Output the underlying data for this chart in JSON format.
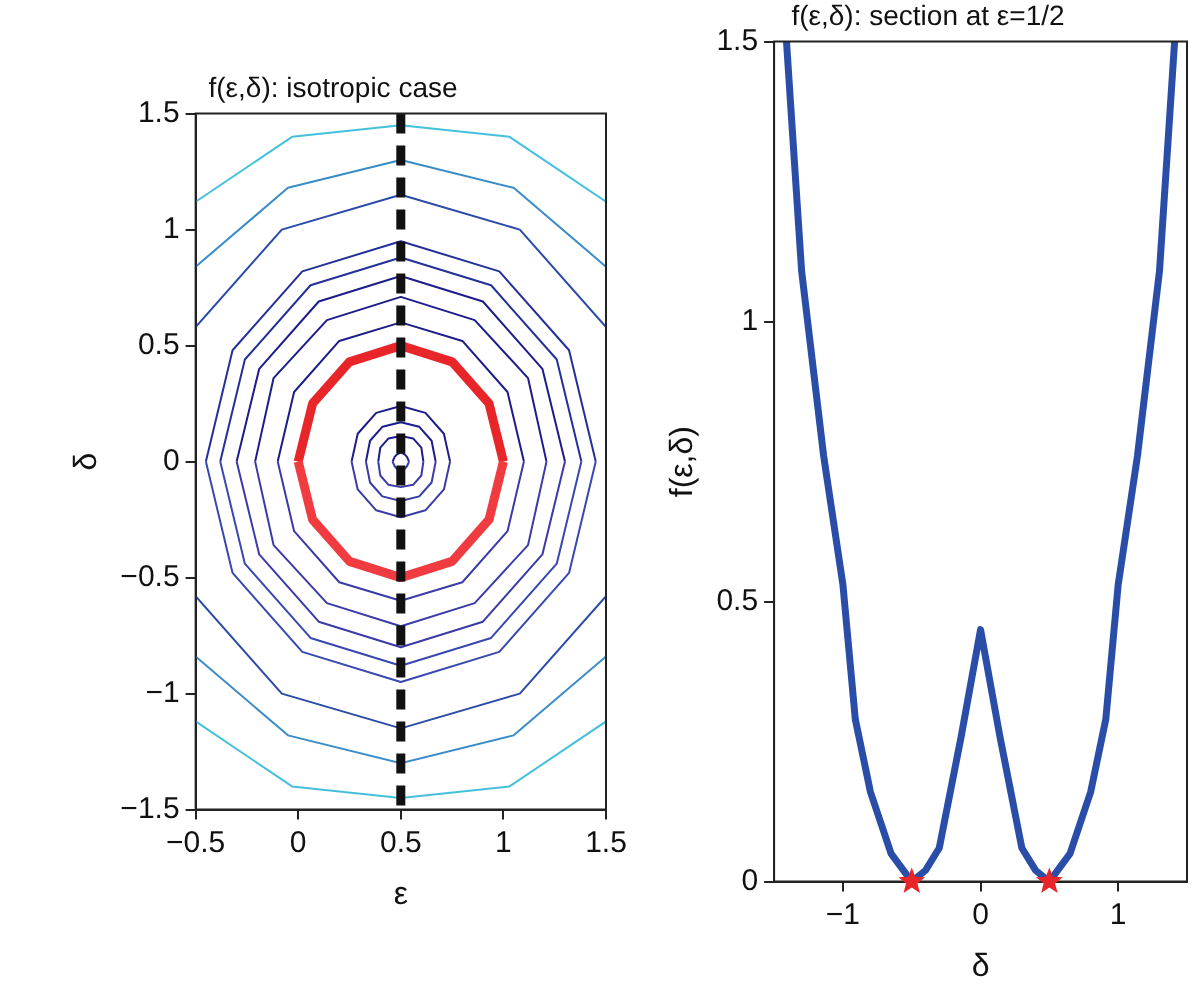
{
  "chart_data": [
    {
      "type": "line",
      "title": "f(ε,δ): isotropic case",
      "xlabel": "ε",
      "ylabel": "δ",
      "xlim": [
        -0.5,
        1.5
      ],
      "ylim": [
        -1.5,
        1.5
      ],
      "xticks": [
        -0.5,
        0,
        0.5,
        1,
        1.5
      ],
      "yticks": [
        -1.5,
        -1,
        -0.5,
        0,
        0.5,
        1,
        1.5
      ],
      "grid": false,
      "legend": false,
      "marker": "none",
      "ref_lines": [
        {
          "axis": "x",
          "value": 0.5,
          "color": "#111111",
          "line_style": "dashed"
        }
      ],
      "series": [
        {
          "color": "#1c1c8a",
          "x": [
            0.54,
            0.53,
            0.52,
            0.5,
            0.48,
            0.47,
            0.46
          ],
          "values": [
            0,
            0.02,
            0.03,
            0.04,
            0.03,
            0.02,
            0
          ]
        },
        {
          "color": "#3a3aa8",
          "x": [
            0.46,
            0.47,
            0.48,
            0.5,
            0.52,
            0.53,
            0.54
          ],
          "values": [
            0,
            -0.02,
            -0.03,
            -0.04,
            -0.03,
            -0.02,
            0
          ]
        },
        {
          "color": "#1c1c8a",
          "x": [
            0.61,
            0.6,
            0.56,
            0.5,
            0.44,
            0.4,
            0.39
          ],
          "values": [
            0,
            0.06,
            0.1,
            0.11,
            0.1,
            0.06,
            0
          ]
        },
        {
          "color": "#3a3aa8",
          "x": [
            0.39,
            0.4,
            0.44,
            0.5,
            0.56,
            0.6,
            0.61
          ],
          "values": [
            0,
            -0.06,
            -0.1,
            -0.11,
            -0.1,
            -0.06,
            0
          ]
        },
        {
          "color": "#1c1c8a",
          "x": [
            0.67,
            0.65,
            0.59,
            0.5,
            0.41,
            0.35,
            0.33
          ],
          "values": [
            0,
            0.09,
            0.15,
            0.17,
            0.15,
            0.09,
            0
          ]
        },
        {
          "color": "#3a3aa8",
          "x": [
            0.33,
            0.35,
            0.41,
            0.5,
            0.59,
            0.65,
            0.67
          ],
          "values": [
            0,
            -0.09,
            -0.15,
            -0.17,
            -0.15,
            -0.09,
            0
          ]
        },
        {
          "color": "#1c1c8a",
          "x": [
            0.74,
            0.71,
            0.62,
            0.5,
            0.38,
            0.29,
            0.26
          ],
          "values": [
            0,
            0.12,
            0.21,
            0.24,
            0.21,
            0.12,
            0
          ]
        },
        {
          "color": "#3a3aa8",
          "x": [
            0.26,
            0.29,
            0.38,
            0.5,
            0.62,
            0.71,
            0.74
          ],
          "values": [
            0,
            -0.12,
            -0.21,
            -0.24,
            -0.21,
            -0.12,
            0
          ]
        },
        {
          "color": "#1c1c8a",
          "x": [
            1.1,
            1.02,
            0.8,
            0.5,
            0.2,
            -0.02,
            -0.1
          ],
          "values": [
            0,
            0.3,
            0.52,
            0.6,
            0.52,
            0.3,
            0
          ]
        },
        {
          "color": "#3a3aa8",
          "x": [
            -0.1,
            -0.02,
            0.2,
            0.5,
            0.8,
            1.02,
            1.1
          ],
          "values": [
            0,
            -0.3,
            -0.52,
            -0.6,
            -0.52,
            -0.3,
            0
          ]
        },
        {
          "color": "#1c1c8a",
          "x": [
            1.21,
            1.12,
            0.86,
            0.5,
            0.14,
            -0.12,
            -0.21
          ],
          "values": [
            0,
            0.36,
            0.61,
            0.71,
            0.61,
            0.36,
            0
          ]
        },
        {
          "color": "#3a3aa8",
          "x": [
            -0.21,
            -0.12,
            0.14,
            0.5,
            0.86,
            1.12,
            1.21
          ],
          "values": [
            0,
            -0.36,
            -0.61,
            -0.71,
            -0.61,
            -0.36,
            0
          ]
        },
        {
          "color": "#1c1c8a",
          "x": [
            1.3,
            1.19,
            0.9,
            0.5,
            0.1,
            -0.19,
            -0.3
          ],
          "values": [
            0,
            0.4,
            0.69,
            0.8,
            0.69,
            0.4,
            0
          ]
        },
        {
          "color": "#3a3aa8",
          "x": [
            -0.3,
            -0.19,
            0.1,
            0.5,
            0.9,
            1.19,
            1.3
          ],
          "values": [
            0,
            -0.4,
            -0.69,
            -0.8,
            -0.69,
            -0.4,
            0
          ]
        },
        {
          "color": "#24309a",
          "x": [
            1.38,
            1.26,
            0.94,
            0.5,
            0.06,
            -0.26,
            -0.38
          ],
          "values": [
            0,
            0.44,
            0.76,
            0.88,
            0.76,
            0.44,
            0
          ]
        },
        {
          "color": "#3848b0",
          "x": [
            -0.38,
            -0.26,
            0.06,
            0.5,
            0.94,
            1.26,
            1.38
          ],
          "values": [
            0,
            -0.44,
            -0.76,
            -0.88,
            -0.76,
            -0.44,
            0
          ]
        },
        {
          "color": "#24309a",
          "x": [
            1.45,
            1.32,
            0.98,
            0.5,
            0.02,
            -0.32,
            -0.45
          ],
          "values": [
            0,
            0.48,
            0.82,
            0.95,
            0.82,
            0.48,
            0
          ]
        },
        {
          "color": "#3848b0",
          "x": [
            -0.45,
            -0.32,
            0.02,
            0.5,
            0.98,
            1.32,
            1.45
          ],
          "values": [
            0,
            -0.48,
            -0.82,
            -0.95,
            -0.82,
            -0.48,
            0
          ]
        },
        {
          "color": "#2c4aa8",
          "x": [
            1.5,
            1.08,
            0.5,
            -0.08,
            -0.5
          ],
          "values": [
            0.58,
            1,
            1.15,
            1,
            0.58
          ]
        },
        {
          "color": "#2c4aa8",
          "x": [
            1.5,
            1.08,
            0.5,
            -0.08,
            -0.5
          ],
          "values": [
            -0.58,
            -1,
            -1.15,
            -1,
            -0.58
          ]
        },
        {
          "color": "#3a8cc8",
          "x": [
            1.5,
            1.05,
            0.5,
            -0.05,
            -0.5
          ],
          "values": [
            0.84,
            1.18,
            1.3,
            1.18,
            0.84
          ]
        },
        {
          "color": "#3a8cc8",
          "x": [
            1.5,
            1.05,
            0.5,
            -0.05,
            -0.5
          ],
          "values": [
            -0.84,
            -1.18,
            -1.3,
            -1.18,
            -0.84
          ]
        },
        {
          "color": "#45c0dc",
          "x": [
            1.5,
            1.03,
            0.5,
            -0.03,
            -0.5
          ],
          "values": [
            1.12,
            1.4,
            1.45,
            1.4,
            1.12
          ]
        },
        {
          "color": "#45c0dc",
          "x": [
            1.5,
            1.03,
            0.5,
            -0.03,
            -0.5
          ],
          "values": [
            -1.12,
            -1.4,
            -1.45,
            -1.4,
            -1.12
          ]
        },
        {
          "color": "#e8262a",
          "x": [
            1,
            0.93,
            0.75,
            0.5,
            0.25,
            0.07,
            0
          ],
          "values": [
            0,
            0.25,
            0.43,
            0.5,
            0.43,
            0.25,
            0
          ]
        },
        {
          "color": "#f03c40",
          "x": [
            0,
            0.07,
            0.25,
            0.5,
            0.75,
            0.93,
            1
          ],
          "values": [
            0,
            -0.25,
            -0.43,
            -0.5,
            -0.43,
            -0.25,
            0
          ]
        }
      ]
    },
    {
      "type": "line",
      "title": "f(ε,δ): section at ε=1/2",
      "xlabel": "δ",
      "ylabel": "f(ε,δ)",
      "xlim": [
        -1.5,
        1.5
      ],
      "ylim": [
        0,
        1.5
      ],
      "xticks": [
        -1,
        0,
        1
      ],
      "yticks": [
        0,
        0.5,
        1,
        1.5
      ],
      "grid": false,
      "legend": false,
      "series": [
        {
          "color": "#2a4ea8",
          "marker": "none",
          "x": [
            -1.41,
            -1.3,
            -1.14,
            -1,
            -0.91,
            -0.8,
            -0.65,
            -0.5,
            -0.4,
            -0.3,
            -0.14,
            0,
            0.14,
            0.3,
            0.4,
            0.5,
            0.65,
            0.8,
            0.91,
            1,
            1.14,
            1.3,
            1.41
          ],
          "values": [
            1.5,
            1.09,
            0.76,
            0.53,
            0.29,
            0.16,
            0.05,
            0,
            0.02,
            0.06,
            0.26,
            0.45,
            0.26,
            0.06,
            0.02,
            0,
            0.05,
            0.16,
            0.29,
            0.53,
            0.76,
            1.09,
            1.5
          ]
        },
        {
          "type": "scatter",
          "color": "#e8262a",
          "marker": "star",
          "x": [
            -0.5,
            0.5
          ],
          "values": [
            0,
            0
          ]
        }
      ]
    }
  ]
}
